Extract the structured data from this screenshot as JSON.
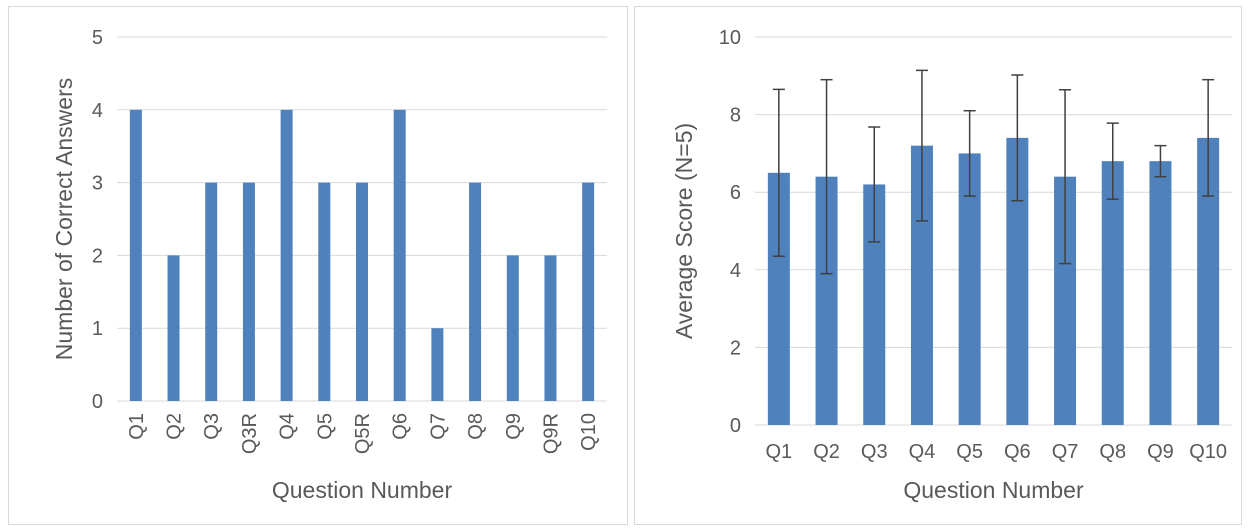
{
  "chart_data": [
    {
      "type": "bar",
      "title": "",
      "xlabel": "Question Number",
      "ylabel": "Number of Correct Answers",
      "categories": [
        "Q1",
        "Q2",
        "Q3",
        "Q3R",
        "Q4",
        "Q5",
        "Q5R",
        "Q6",
        "Q7",
        "Q8",
        "Q9",
        "Q9R",
        "Q10"
      ],
      "series": [
        {
          "values": [
            4,
            2,
            3,
            3,
            4,
            3,
            3,
            4,
            1,
            3,
            2,
            2,
            3
          ]
        }
      ],
      "ylim": [
        0,
        5
      ],
      "yticks": [
        "0",
        "1",
        "2",
        "3",
        "4",
        "5"
      ],
      "grid": true,
      "xtick_rotation": "vertical",
      "bar_color": "#4f81bd"
    },
    {
      "type": "bar",
      "title": "",
      "xlabel": "Question Number",
      "ylabel": "Average Score (N=5)",
      "categories": [
        "Q1",
        "Q2",
        "Q3",
        "Q4",
        "Q5",
        "Q6",
        "Q7",
        "Q8",
        "Q9",
        "Q10"
      ],
      "series": [
        {
          "values": [
            6.5,
            6.4,
            6.2,
            7.2,
            7.0,
            7.4,
            6.4,
            6.8,
            6.8,
            7.4
          ],
          "error": [
            2.15,
            2.5,
            1.48,
            1.94,
            1.1,
            1.62,
            2.24,
            0.98,
            0.4,
            1.5
          ]
        }
      ],
      "ylim": [
        0,
        10
      ],
      "yticks": [
        "0",
        "2",
        "4",
        "6",
        "8",
        "10"
      ],
      "grid": true,
      "error_bars": true,
      "bar_color": "#4f81bd",
      "error_color": "#404040"
    }
  ]
}
